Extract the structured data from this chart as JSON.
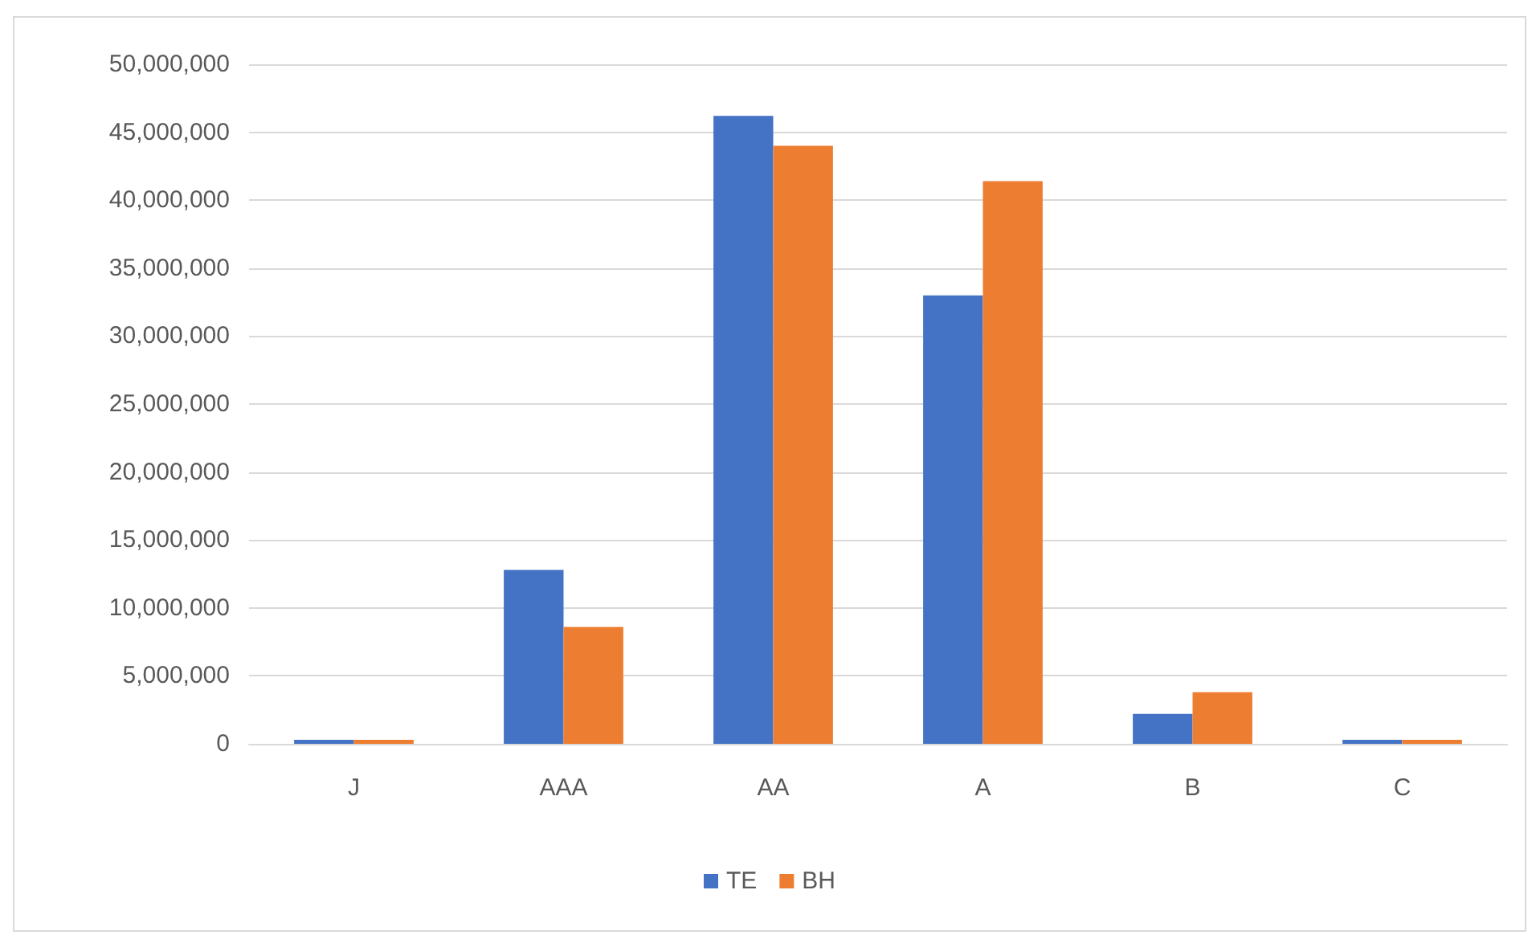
{
  "chart_data": {
    "type": "bar",
    "categories": [
      "J",
      "AAA",
      "AA",
      "A",
      "B",
      "C"
    ],
    "series": [
      {
        "name": "TE",
        "color": "#4472c4",
        "values": [
          300000,
          12800000,
          46200000,
          33000000,
          2200000,
          300000
        ]
      },
      {
        "name": "BH",
        "color": "#ed7d31",
        "values": [
          300000,
          8600000,
          44000000,
          41400000,
          3800000,
          300000
        ]
      }
    ],
    "ylim": [
      0,
      50000000
    ],
    "yticks": [
      0,
      {
        "value": 5000000,
        "label": "5,000,000"
      },
      {
        "value": 10000000,
        "label": "10,000,000"
      },
      {
        "value": 15000000,
        "label": "15,000,000"
      },
      {
        "value": 20000000,
        "label": "20,000,000"
      },
      {
        "value": 25000000,
        "label": "25,000,000"
      },
      {
        "value": 30000000,
        "label": "30,000,000"
      },
      {
        "value": 35000000,
        "label": "35,000,000"
      },
      {
        "value": 40000000,
        "label": "40,000,000"
      },
      {
        "value": 45000000,
        "label": "45,000,000"
      },
      {
        "value": 50000000,
        "label": "50,000,000"
      }
    ],
    "grid": "y",
    "legend": "bottom"
  }
}
